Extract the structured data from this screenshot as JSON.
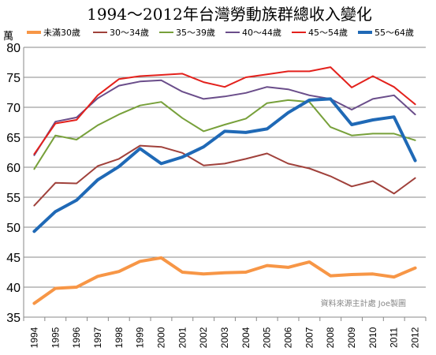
{
  "chart_data": {
    "type": "line",
    "title": "1994～2012年台灣勞動族群總收入變化",
    "unit_label": "萬",
    "source_note": "資料來源主計處 Joe製圖",
    "ylim": [
      35,
      80
    ],
    "yticks": [
      35,
      40,
      45,
      50,
      55,
      60,
      65,
      70,
      75,
      80
    ],
    "grid": true,
    "legend_position": "top",
    "x": [
      "1994",
      "1995",
      "1996",
      "1997",
      "1998",
      "1999",
      "2000",
      "2001",
      "2002",
      "2003",
      "2004",
      "2005",
      "2006",
      "2007",
      "2008",
      "2009",
      "2010",
      "2011",
      "2012"
    ],
    "series": [
      {
        "name": "未滿30歲",
        "color": "#f79646",
        "width": 4,
        "values": [
          37.3,
          39.8,
          40.0,
          41.8,
          42.6,
          44.3,
          44.9,
          42.5,
          42.2,
          42.4,
          42.5,
          43.6,
          43.3,
          44.2,
          41.9,
          42.1,
          42.2,
          41.7,
          43.2
        ]
      },
      {
        "name": "30～34歲",
        "color": "#a0413b",
        "width": 2,
        "values": [
          53.6,
          57.4,
          57.3,
          60.2,
          61.4,
          63.6,
          63.4,
          62.4,
          60.3,
          60.6,
          61.4,
          62.3,
          60.6,
          59.8,
          58.5,
          56.8,
          57.7,
          55.6,
          58.2
        ]
      },
      {
        "name": "35～39歲",
        "color": "#77a03a",
        "width": 2,
        "values": [
          59.7,
          65.3,
          64.6,
          67.0,
          68.8,
          70.3,
          70.9,
          68.2,
          66.0,
          67.1,
          68.1,
          70.7,
          71.2,
          70.9,
          66.7,
          65.3,
          65.6,
          65.6,
          64.5
        ]
      },
      {
        "name": "40～44歲",
        "color": "#6a4d8a",
        "width": 2,
        "values": [
          62.0,
          67.6,
          68.3,
          71.5,
          73.6,
          74.3,
          74.5,
          72.6,
          71.4,
          71.8,
          72.4,
          73.4,
          73.0,
          72.0,
          71.4,
          69.6,
          71.4,
          72.0,
          68.8
        ]
      },
      {
        "name": "45～54歲",
        "color": "#e3211c",
        "width": 2,
        "values": [
          62.2,
          67.3,
          67.9,
          72.0,
          74.7,
          75.2,
          75.4,
          75.6,
          74.2,
          73.4,
          75.0,
          75.5,
          76.0,
          76.0,
          76.7,
          73.3,
          75.2,
          73.4,
          70.5
        ]
      },
      {
        "name": "55～64歲",
        "color": "#1f69b6",
        "width": 4,
        "values": [
          49.3,
          52.6,
          54.5,
          57.9,
          60.1,
          63.1,
          60.6,
          61.7,
          63.4,
          66.0,
          65.8,
          66.4,
          69.1,
          71.2,
          71.4,
          67.1,
          67.9,
          68.4,
          61.1
        ]
      }
    ]
  }
}
